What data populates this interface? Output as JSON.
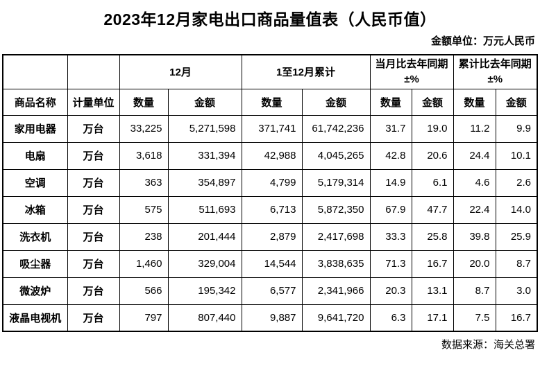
{
  "title": "2023年12月家电出口商品量值表（人民币值）",
  "unit_note": "金额单位：万元人民币",
  "source_note": "数据来源：海关总署",
  "table": {
    "group_headers": {
      "december": "12月",
      "cumulative": "1至12月累计",
      "month_yoy": "当月比去年同期",
      "cumulative_yoy": "累计比去年同期",
      "yoy_suffix": "±%"
    },
    "sub_headers": {
      "product": "商品名称",
      "unit": "计量单位",
      "quantity": "数量",
      "amount": "金额"
    },
    "rows": [
      {
        "product": "家用电器",
        "unit": "万台",
        "values": [
          "33,225",
          "5,271,598",
          "371,741",
          "61,742,236",
          "31.7",
          "19.0",
          "11.2",
          "9.9"
        ]
      },
      {
        "product": "电扇",
        "unit": "万台",
        "values": [
          "3,618",
          "331,394",
          "42,988",
          "4,045,265",
          "42.8",
          "20.6",
          "24.4",
          "10.1"
        ]
      },
      {
        "product": "空调",
        "unit": "万台",
        "values": [
          "363",
          "354,897",
          "4,799",
          "5,179,314",
          "14.9",
          "6.1",
          "4.6",
          "2.6"
        ]
      },
      {
        "product": "冰箱",
        "unit": "万台",
        "values": [
          "575",
          "511,693",
          "6,713",
          "5,872,350",
          "67.9",
          "47.7",
          "22.4",
          "14.0"
        ]
      },
      {
        "product": "洗衣机",
        "unit": "万台",
        "values": [
          "238",
          "201,444",
          "2,879",
          "2,417,698",
          "33.3",
          "25.8",
          "39.8",
          "25.9"
        ]
      },
      {
        "product": "吸尘器",
        "unit": "万台",
        "values": [
          "1,460",
          "329,004",
          "14,544",
          "3,838,635",
          "71.3",
          "16.7",
          "20.0",
          "8.7"
        ]
      },
      {
        "product": "微波炉",
        "unit": "万台",
        "values": [
          "566",
          "195,342",
          "6,577",
          "2,341,966",
          "20.3",
          "13.1",
          "8.7",
          "3.0"
        ]
      },
      {
        "product": "液晶电视机",
        "unit": "万台",
        "values": [
          "797",
          "807,440",
          "9,887",
          "9,641,720",
          "6.3",
          "17.1",
          "7.5",
          "16.7"
        ]
      }
    ]
  }
}
